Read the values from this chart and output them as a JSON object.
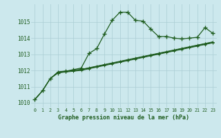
{
  "x": [
    0,
    1,
    2,
    3,
    4,
    5,
    6,
    7,
    8,
    9,
    10,
    11,
    12,
    13,
    14,
    15,
    16,
    17,
    18,
    19,
    20,
    21,
    22,
    23
  ],
  "line_main": [
    1010.2,
    1010.75,
    1011.5,
    1011.85,
    1011.95,
    1012.05,
    1012.15,
    1013.05,
    1013.35,
    1014.25,
    1015.1,
    1015.6,
    1015.6,
    1015.1,
    1015.05,
    1014.55,
    1014.1,
    1014.1,
    1014.0,
    1013.95,
    1014.0,
    1014.05,
    1014.65,
    1014.3
  ],
  "line_a": [
    1010.2,
    1010.75,
    1011.5,
    1011.85,
    1011.9,
    1011.95,
    1012.0,
    1012.1,
    1012.2,
    1012.3,
    1012.4,
    1012.5,
    1012.6,
    1012.7,
    1012.8,
    1012.9,
    1013.0,
    1013.1,
    1013.2,
    1013.3,
    1013.4,
    1013.5,
    1013.6,
    1013.7
  ],
  "line_b": [
    1010.2,
    1010.75,
    1011.5,
    1011.88,
    1011.93,
    1011.98,
    1012.03,
    1012.13,
    1012.23,
    1012.33,
    1012.43,
    1012.53,
    1012.63,
    1012.73,
    1012.83,
    1012.93,
    1013.03,
    1013.13,
    1013.23,
    1013.33,
    1013.43,
    1013.53,
    1013.63,
    1013.73
  ],
  "line_c": [
    1010.2,
    1010.75,
    1011.5,
    1011.9,
    1011.95,
    1012.0,
    1012.05,
    1012.15,
    1012.25,
    1012.35,
    1012.45,
    1012.55,
    1012.65,
    1012.75,
    1012.85,
    1012.95,
    1013.05,
    1013.15,
    1013.25,
    1013.35,
    1013.45,
    1013.55,
    1013.65,
    1013.75
  ],
  "line_d": [
    1010.2,
    1010.75,
    1011.5,
    1011.92,
    1011.97,
    1012.02,
    1012.07,
    1012.17,
    1012.27,
    1012.37,
    1012.47,
    1012.57,
    1012.67,
    1012.77,
    1012.87,
    1012.97,
    1013.07,
    1013.17,
    1013.27,
    1013.37,
    1013.47,
    1013.57,
    1013.67,
    1013.77
  ],
  "bg_color": "#cce8ed",
  "line_color": "#1e5c1e",
  "grid_color": "#aacdd4",
  "xlabel": "Graphe pression niveau de la mer (hPa)",
  "ylim": [
    1009.7,
    1016.1
  ],
  "yticks": [
    1010,
    1011,
    1012,
    1013,
    1014,
    1015
  ],
  "xticks": [
    0,
    1,
    2,
    3,
    4,
    5,
    6,
    7,
    8,
    9,
    10,
    11,
    12,
    13,
    14,
    15,
    16,
    17,
    18,
    19,
    20,
    21,
    22,
    23
  ]
}
